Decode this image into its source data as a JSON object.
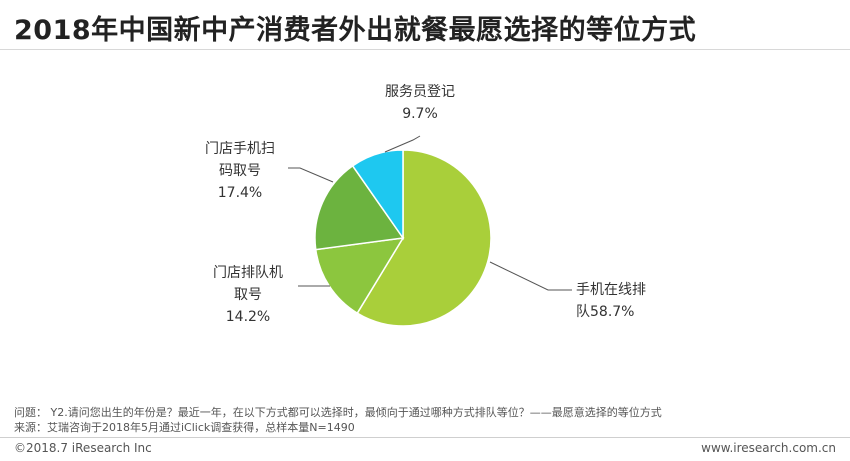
{
  "title": "2018年中国新中产消费者外出就餐最愿选择的等位方式",
  "chart_data": {
    "type": "pie",
    "start": "12 o'clock",
    "direction": "clockwise",
    "slices": [
      {
        "label_lines": [
          "手机在线排",
          "队58.7%"
        ],
        "value": 58.7,
        "color": "#a9cf3a"
      },
      {
        "label_lines": [
          "门店排队机",
          "取号",
          "14.2%"
        ],
        "value": 14.2,
        "color": "#8cc63e"
      },
      {
        "label_lines": [
          "门店手机扫",
          "码取号",
          "17.4%"
        ],
        "value": 17.4,
        "color": "#6cb33f"
      },
      {
        "label_lines": [
          "服务员登记",
          "9.7%"
        ],
        "value": 9.7,
        "color": "#1ec8f0"
      }
    ]
  },
  "footer": {
    "question": "问题： Y2.请问您出生的年份是？最近一年，在以下方式都可以选择时，最倾向于通过哪种方式排队等位？——最愿意选择的等位方式",
    "source": "来源：艾瑞咨询于2018年5月通过iClick调查获得，总样本量N=1490",
    "copyright": "©2018.7 iResearch Inc",
    "website": "www.iresearch.com.cn"
  }
}
